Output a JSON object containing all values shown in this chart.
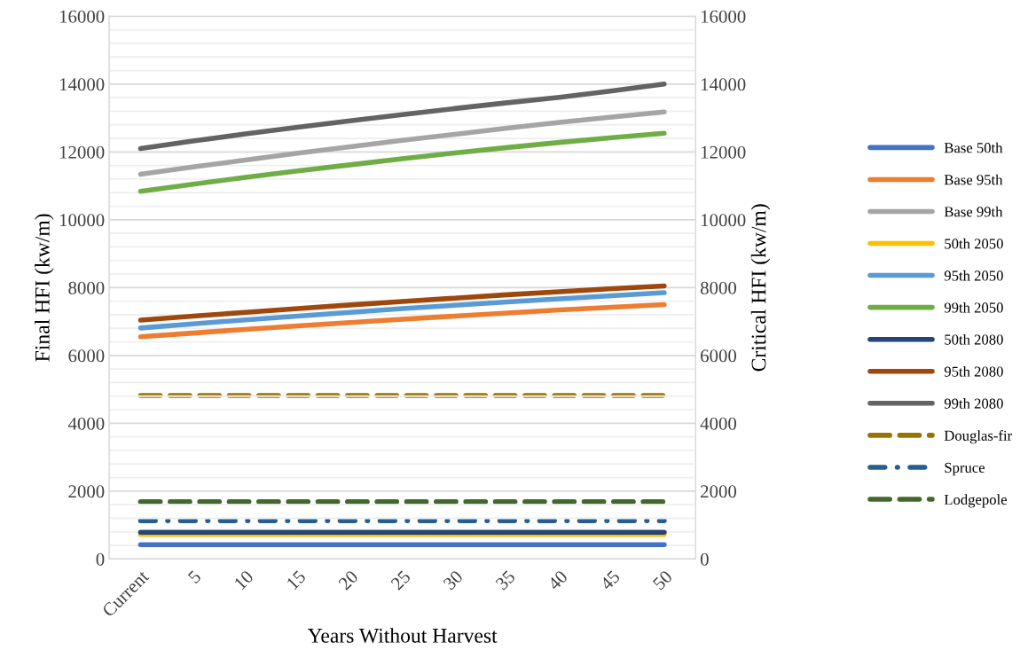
{
  "chart_data": {
    "type": "line",
    "xlabel": "Years Without Harvest",
    "ylabel": "Final HFI (kw/m)",
    "y2label": "Critical HFI (kw/m)",
    "categories": [
      "Current",
      "5",
      "10",
      "15",
      "20",
      "25",
      "30",
      "35",
      "40",
      "45",
      "50"
    ],
    "ylim": [
      0,
      16000
    ],
    "y2lim": [
      0,
      16000
    ],
    "yticks": [
      0,
      {
        "value": 400,
        "label": null
      },
      {
        "value": 800,
        "label": null
      },
      {
        "value": 1200,
        "label": null
      },
      {
        "value": 1600,
        "label": null
      },
      2000,
      {
        "value": 2400,
        "label": null
      },
      {
        "value": 2800,
        "label": null
      },
      {
        "value": 3200,
        "label": null
      },
      {
        "value": 3600,
        "label": null
      },
      4000,
      {
        "value": 4400,
        "label": null
      },
      {
        "value": 4800,
        "label": null
      },
      {
        "value": 5200,
        "label": null
      },
      {
        "value": 5600,
        "label": null
      },
      6000,
      {
        "value": 6400,
        "label": null
      },
      {
        "value": 6800,
        "label": null
      },
      {
        "value": 7200,
        "label": null
      },
      {
        "value": 7600,
        "label": null
      },
      8000,
      {
        "value": 8400,
        "label": null
      },
      {
        "value": 8800,
        "label": null
      },
      {
        "value": 9200,
        "label": null
      },
      {
        "value": 9600,
        "label": null
      },
      10000,
      {
        "value": 10400,
        "label": null
      },
      {
        "value": 10800,
        "label": null
      },
      {
        "value": 11200,
        "label": null
      },
      {
        "value": 11600,
        "label": null
      },
      12000,
      {
        "value": 12400,
        "label": null
      },
      {
        "value": 12800,
        "label": null
      },
      {
        "value": 13200,
        "label": null
      },
      {
        "value": 13600,
        "label": null
      },
      14000,
      {
        "value": 14400,
        "label": null
      },
      {
        "value": 14800,
        "label": null
      },
      {
        "value": 15200,
        "label": null
      },
      {
        "value": 15600,
        "label": null
      },
      16000
    ],
    "y2ticks": [
      0,
      2000,
      4000,
      6000,
      8000,
      10000,
      12000,
      14000,
      16000
    ],
    "grid": "y",
    "legend": "right",
    "marker": "none",
    "series": [
      {
        "name": "Base 50th",
        "color": "#4472c4",
        "values": [
          420,
          420,
          420,
          420,
          420,
          420,
          420,
          420,
          420,
          420,
          420
        ]
      },
      {
        "name": "Base 95th",
        "color": "#ed7d31",
        "values": [
          6550,
          6660,
          6770,
          6870,
          6970,
          7070,
          7160,
          7250,
          7340,
          7420,
          7500
        ]
      },
      {
        "name": "Base 99th",
        "color": "#a5a5a5",
        "values": [
          11340,
          11560,
          11760,
          11960,
          12150,
          12340,
          12520,
          12700,
          12870,
          13030,
          13180
        ]
      },
      {
        "name": "50th 2050",
        "color": "#ffc000",
        "values": [
          720,
          720,
          720,
          720,
          720,
          720,
          720,
          720,
          720,
          720,
          720
        ]
      },
      {
        "name": "95th 2050",
        "color": "#5b9bd5",
        "values": [
          6810,
          6930,
          7050,
          7160,
          7270,
          7380,
          7480,
          7580,
          7670,
          7760,
          7850
        ]
      },
      {
        "name": "99th 2050",
        "color": "#70ad47",
        "values": [
          10840,
          11050,
          11250,
          11440,
          11620,
          11800,
          11970,
          12130,
          12280,
          12420,
          12550
        ]
      },
      {
        "name": "50th 2080",
        "color": "#264478",
        "values": [
          790,
          790,
          790,
          790,
          790,
          790,
          790,
          790,
          790,
          790,
          790
        ]
      },
      {
        "name": "95th 2080",
        "color": "#9e480e",
        "values": [
          7040,
          7160,
          7270,
          7380,
          7490,
          7590,
          7690,
          7790,
          7880,
          7970,
          8050
        ]
      },
      {
        "name": "99th 2080",
        "color": "#636363",
        "values": [
          12100,
          12320,
          12530,
          12730,
          12920,
          13100,
          13280,
          13450,
          13610,
          13800,
          14000
        ]
      },
      {
        "name": "Douglas-fir",
        "color": "#997300",
        "axis": "y2",
        "line_style": "dashed",
        "values": [
          4820,
          4820,
          4820,
          4820,
          4820,
          4820,
          4820,
          4820,
          4820,
          4820,
          4820
        ]
      },
      {
        "name": "Spruce",
        "color": "#255e91",
        "axis": "y2",
        "line_style": "dashdot",
        "values": [
          1130,
          1130,
          1130,
          1130,
          1130,
          1130,
          1130,
          1130,
          1130,
          1130,
          1130
        ]
      },
      {
        "name": "Lodgepole",
        "color": "#43682b",
        "axis": "y2",
        "line_style": "dashed",
        "values": [
          1690,
          1690,
          1690,
          1690,
          1690,
          1690,
          1690,
          1690,
          1690,
          1690,
          1690
        ]
      }
    ]
  }
}
